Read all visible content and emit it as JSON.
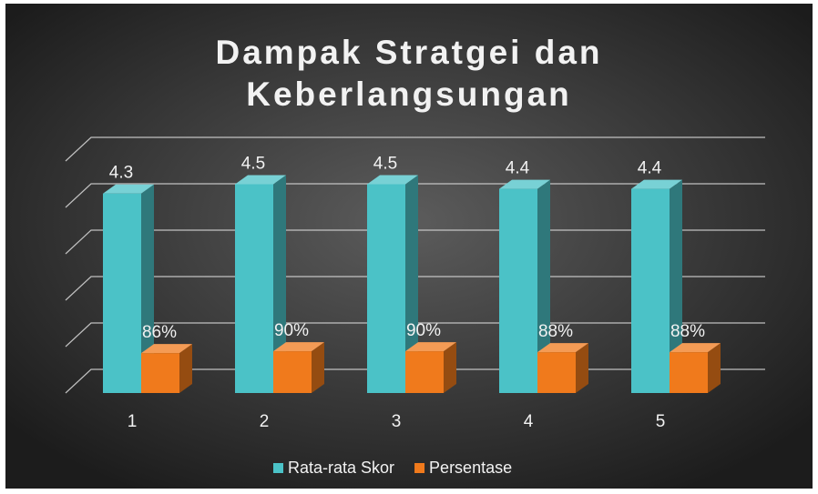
{
  "chart_data": {
    "type": "bar3d",
    "title": "Dampak Stratgei dan Keberlangsungan",
    "categories": [
      "1",
      "2",
      "3",
      "4",
      "5"
    ],
    "series": [
      {
        "name": "Rata-rata Skor",
        "color": "#4bc2c7",
        "values": [
          4.3,
          4.5,
          4.5,
          4.4,
          4.4
        ]
      },
      {
        "name": "Persentase",
        "color": "#f07a1c",
        "values": [
          0.86,
          0.9,
          0.9,
          0.88,
          0.88
        ],
        "value_labels": [
          "86%",
          "90%",
          "90%",
          "88%",
          "88%"
        ]
      }
    ],
    "ylim": [
      0,
      5
    ],
    "yticks": [
      0,
      1,
      2,
      3,
      4,
      5
    ],
    "grid": true,
    "legend": "bottom"
  }
}
